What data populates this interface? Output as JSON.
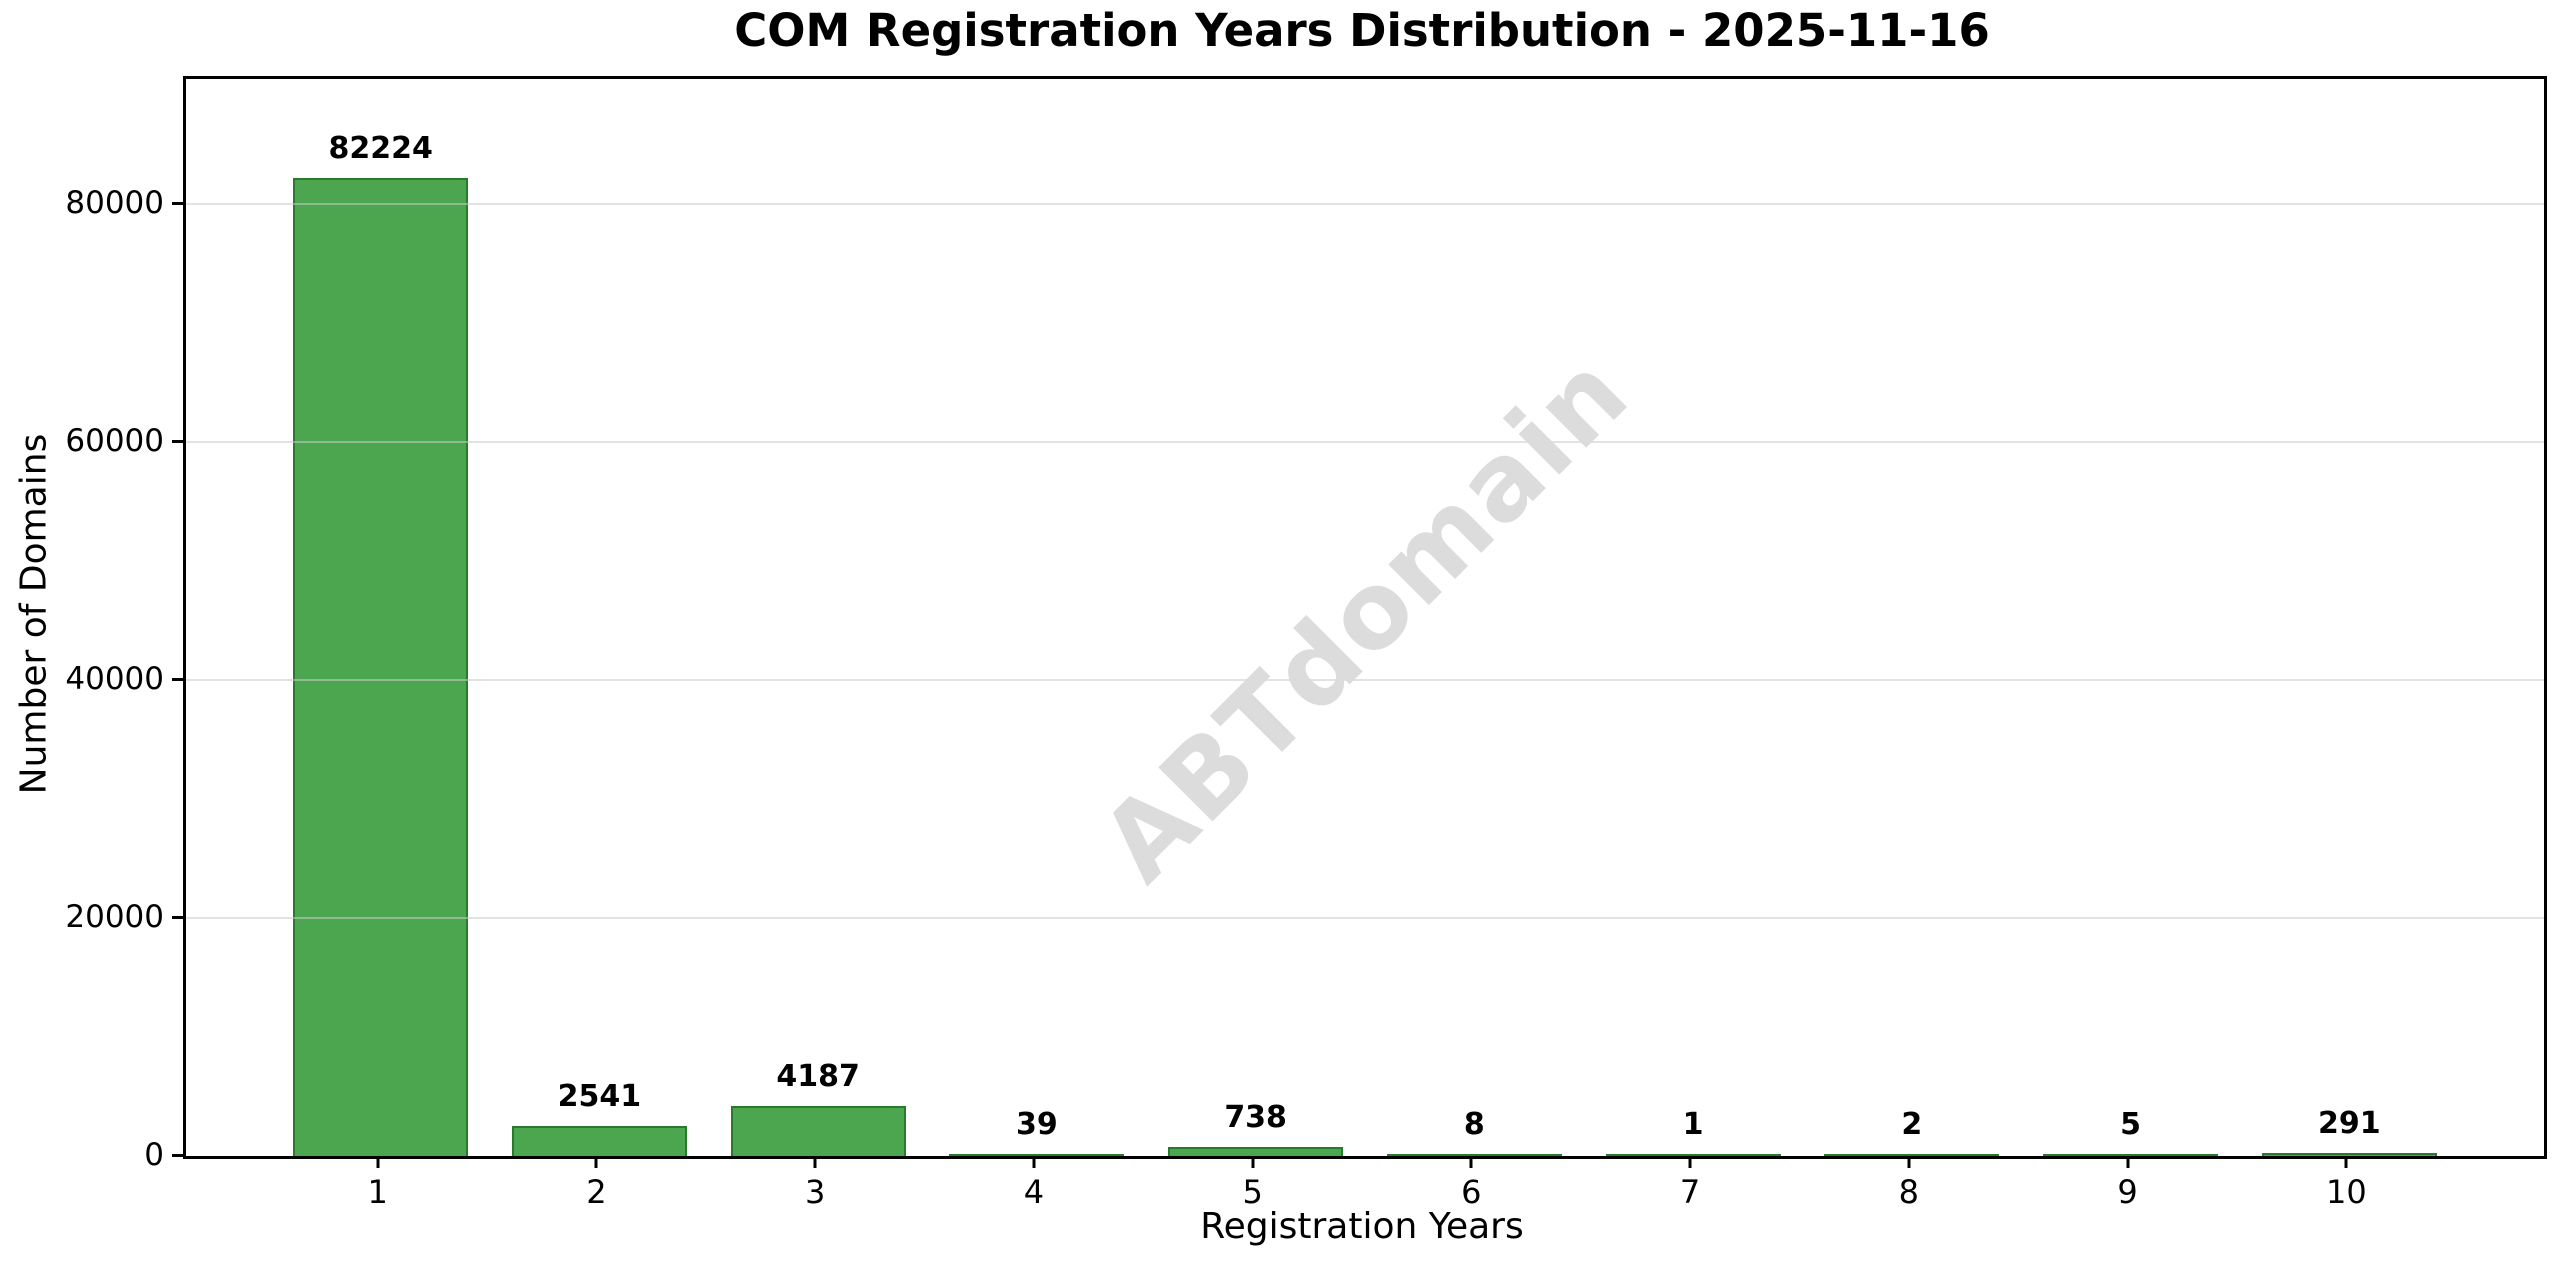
{
  "chart_data": {
    "type": "bar",
    "title": "COM Registration Years Distribution - 2025-11-16",
    "xlabel": "Registration Years",
    "ylabel": "Number of Domains",
    "categories": [
      "1",
      "2",
      "3",
      "4",
      "5",
      "6",
      "7",
      "8",
      "9",
      "10"
    ],
    "values": [
      82224,
      2541,
      4187,
      39,
      738,
      8,
      1,
      2,
      5,
      291
    ],
    "bar_value_labels": [
      "82224",
      "2541",
      "4187",
      "39",
      "738",
      "8",
      "1",
      "2",
      "5",
      "291"
    ],
    "yticks": [
      0,
      20000,
      40000,
      60000,
      80000
    ],
    "ytick_labels": [
      "0",
      "20000",
      "40000",
      "60000",
      "80000"
    ],
    "ylim": [
      0,
      90500
    ],
    "xlim": [
      0.11,
      10.89
    ],
    "bar_width_units": 0.8,
    "grid": "horizontal",
    "legend": "none",
    "watermark": "ABTdomain",
    "colors": {
      "bar_fill": "#4ba64f",
      "bar_edge": "#2a7a2e",
      "grid": "#cbcbcb",
      "watermark": "#dcdcdc",
      "axis": "#000000",
      "background": "#ffffff"
    }
  }
}
